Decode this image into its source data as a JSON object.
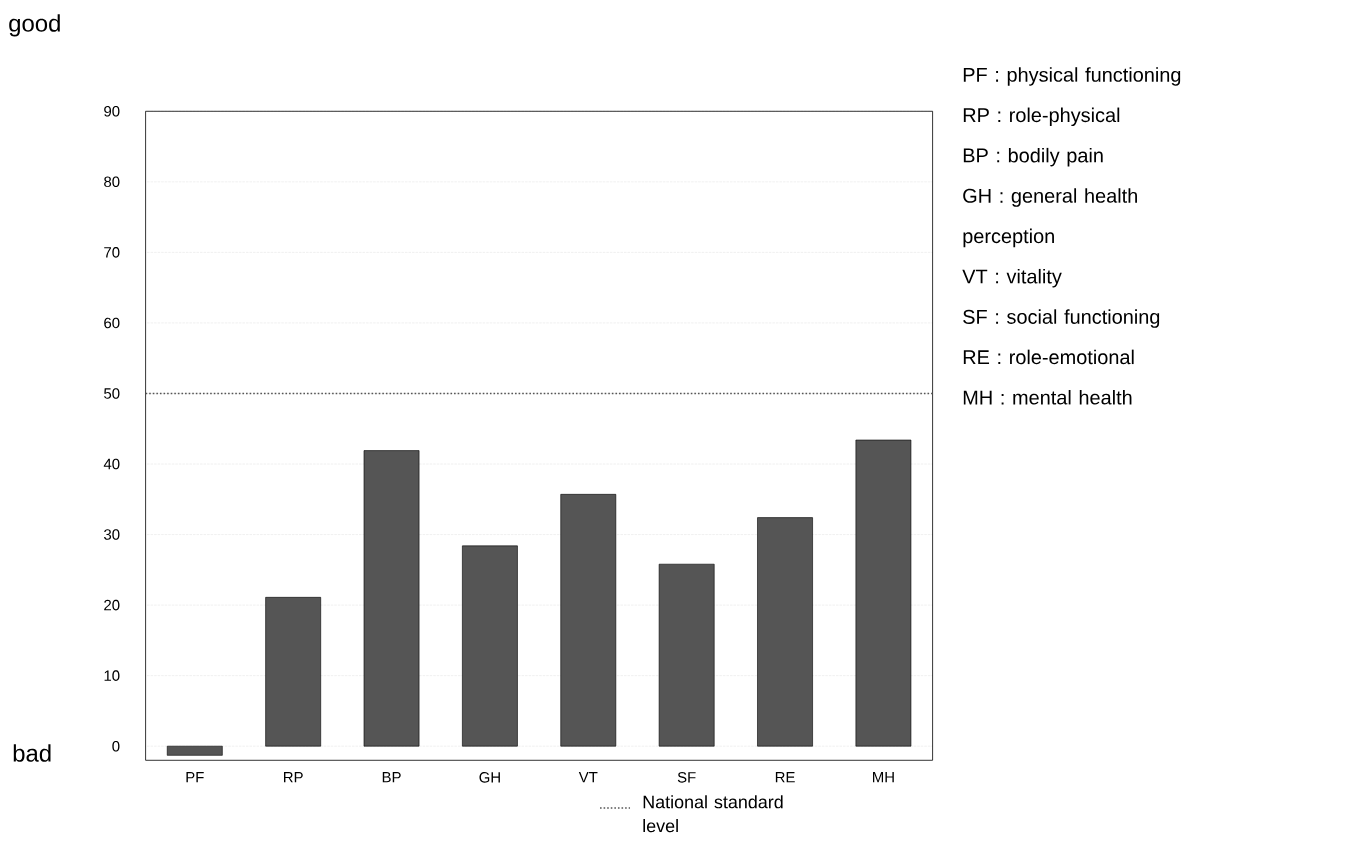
{
  "chart_data": {
    "type": "bar",
    "categories": [
      "PF",
      "RP",
      "BP",
      "GH",
      "VT",
      "SF",
      "RE",
      "MH"
    ],
    "values": [
      -1.3,
      21.1,
      41.9,
      28.4,
      35.7,
      25.8,
      32.4,
      43.4
    ],
    "color": "#555555",
    "ylim": [
      -2,
      90
    ],
    "yticks": [
      0,
      10,
      20,
      30,
      40,
      50,
      60,
      70,
      80,
      90
    ],
    "grid": "y",
    "legend": "bottom",
    "ref_lines": [
      {
        "axis": "y",
        "value": 50,
        "label": "National standard level",
        "color": "#555555",
        "line_style": "dotted"
      }
    ],
    "annotations": [
      "good",
      "bad",
      "PF : physical functioning",
      "RP : role-physical",
      "BP : bodily pain",
      "GH : general health perception",
      "VT : vitality",
      "SF : social functioning",
      "RE : role-emotional",
      "MH : mental health"
    ]
  }
}
